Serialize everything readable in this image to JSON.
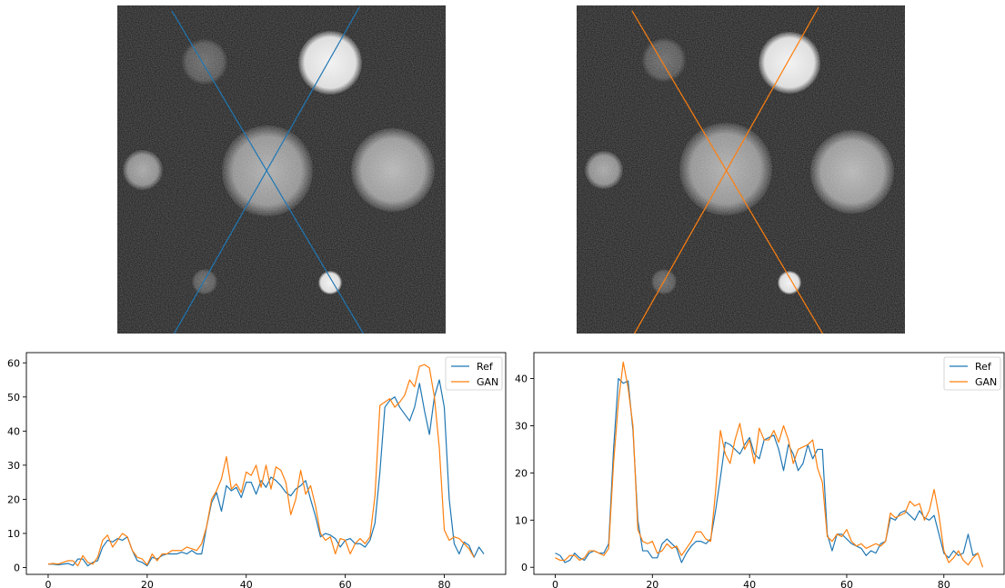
{
  "colors": {
    "ref": "#1f77b4",
    "gan": "#ff7f0e",
    "image_bg": "#141414",
    "axis": "#000000"
  },
  "images": [
    {
      "name": "reference-phantom-image",
      "line_color": "#1f77b4"
    },
    {
      "name": "gan-phantom-image",
      "line_color": "#ff7f0e"
    }
  ],
  "chart_data": [
    {
      "type": "line",
      "title": "",
      "xlabel": "",
      "ylabel": "",
      "xlim": [
        -4.4,
        92.4
      ],
      "ylim": [
        -2,
        63
      ],
      "xticks": [
        0,
        20,
        40,
        60,
        80
      ],
      "yticks": [
        0,
        10,
        20,
        30,
        40,
        50,
        60
      ],
      "legend_position": "top-right",
      "series": [
        {
          "name": "Ref",
          "color": "#1f77b4",
          "values": [
            1,
            1,
            0.8,
            1,
            1.2,
            0.6,
            2.5,
            2.5,
            0.5,
            1.5,
            2,
            6,
            8,
            7.5,
            8.5,
            8,
            9,
            5,
            2,
            1.5,
            0.5,
            3,
            2.5,
            3.5,
            4,
            4,
            4,
            4.5,
            4,
            5,
            4,
            4,
            12,
            19,
            22,
            16.5,
            24,
            22.5,
            23.5,
            20.5,
            25,
            25,
            21.5,
            25.5,
            23.5,
            26.5,
            25.5,
            24,
            22,
            21,
            23,
            24,
            25.5,
            20,
            15,
            9,
            10,
            9.5,
            8.5,
            6,
            8,
            8.5,
            7,
            7,
            6,
            8,
            13,
            28,
            47,
            49,
            50,
            47,
            45,
            43,
            47,
            54,
            46,
            39,
            50,
            55,
            47,
            20,
            7,
            4,
            7.5,
            6.5,
            3,
            6,
            4
          ]
        },
        {
          "name": "GAN",
          "color": "#ff7f0e",
          "values": [
            1,
            1.2,
            1,
            1.5,
            2,
            2,
            0.5,
            3.5,
            1.5,
            1,
            3,
            8,
            9.5,
            6,
            8,
            10,
            9,
            5,
            3,
            2.5,
            0.8,
            4,
            2,
            4,
            4,
            5,
            5,
            5,
            6,
            5.5,
            5,
            7,
            12,
            20,
            22.5,
            26,
            32.5,
            23,
            24.5,
            22,
            28,
            27,
            30,
            23.5,
            30,
            23,
            29.5,
            28.5,
            25,
            15.5,
            20,
            28.5,
            21.5,
            24,
            18,
            10,
            8,
            9,
            4,
            8.5,
            8,
            4,
            7,
            8.5,
            7,
            9,
            21,
            47.5,
            48.5,
            49.5,
            47,
            48.5,
            50.5,
            55,
            53,
            59,
            59.5,
            58.5,
            50,
            35,
            11,
            8,
            9,
            8.5,
            7,
            5.5,
            3
          ]
        }
      ]
    },
    {
      "type": "line",
      "title": "",
      "xlabel": "",
      "ylabel": "",
      "xlim": [
        -4.4,
        92.4
      ],
      "ylim": [
        -1.5,
        45.5
      ],
      "xticks": [
        0,
        20,
        40,
        60,
        80
      ],
      "yticks": [
        0,
        10,
        20,
        30,
        40
      ],
      "legend_position": "top-right",
      "series": [
        {
          "name": "Ref",
          "color": "#1f77b4",
          "values": [
            3,
            2.5,
            1,
            1.5,
            3,
            2,
            1.5,
            3,
            3.5,
            3,
            3,
            5,
            25,
            40,
            39,
            39.5,
            29,
            10,
            3.5,
            3.5,
            2,
            2,
            5,
            6,
            5,
            4,
            1,
            3,
            4.5,
            5.5,
            5.5,
            5,
            6,
            12,
            19,
            26.5,
            26,
            25,
            24,
            26,
            27.5,
            24,
            23,
            27,
            27.5,
            28,
            25,
            20.5,
            26,
            24,
            20.5,
            22,
            26,
            23,
            25,
            25,
            7,
            3.5,
            7,
            7,
            6,
            5,
            4.5,
            4,
            2.5,
            3.5,
            3,
            5,
            5.5,
            10.5,
            10,
            11.5,
            12,
            11,
            10,
            12,
            10.5,
            10,
            11,
            7,
            3,
            2,
            3.5,
            2.5,
            3,
            7,
            2.5,
            3
          ]
        },
        {
          "name": "GAN",
          "color": "#ff7f0e",
          "values": [
            2,
            1.5,
            1.5,
            2.5,
            2.5,
            1.5,
            2,
            3.5,
            3.5,
            3,
            2.5,
            4,
            22,
            35,
            43.5,
            38,
            30,
            8,
            5.5,
            5,
            5.5,
            3,
            3.5,
            5,
            4,
            4.5,
            2.5,
            4,
            5.5,
            7.5,
            7.5,
            6,
            5.5,
            16,
            29,
            24,
            22,
            27,
            30.5,
            25,
            27,
            22,
            29.5,
            27,
            27,
            29,
            26.5,
            30,
            27,
            22,
            25,
            25.5,
            26,
            27,
            21,
            18,
            6.5,
            5.5,
            7,
            6.5,
            8,
            5.5,
            4.5,
            5,
            4,
            4.5,
            5,
            4.5,
            5.5,
            11.5,
            10.5,
            11,
            11.5,
            14,
            13,
            13.5,
            10,
            12,
            16.5,
            11,
            3.5,
            1,
            2,
            3.5,
            1.5,
            0.5,
            2,
            3,
            0
          ]
        }
      ]
    }
  ]
}
